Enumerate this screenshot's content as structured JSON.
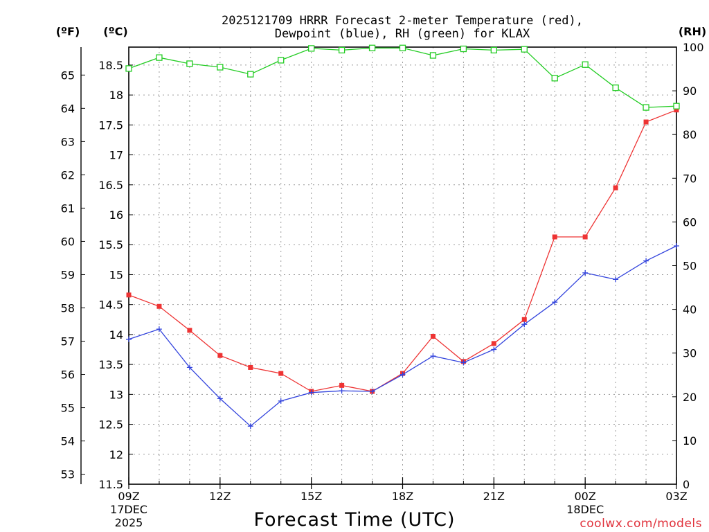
{
  "chart_data": {
    "type": "line",
    "title_line1": "2025121709 HRRR Forecast 2-meter Temperature (red),",
    "title_line2": "Dewpoint (blue), RH (green) for KLAX",
    "xlabel": "Forecast Time (UTC)",
    "credit": "coolwx.com/models",
    "units": {
      "fahrenheit": "(ºF)",
      "celsius": "(ºC)",
      "rh": "(RH)"
    },
    "x_range_hours": [
      0,
      18
    ],
    "celsius_range": [
      11.5,
      18.8
    ],
    "rh_range": [
      0,
      100
    ],
    "x_ticks": [
      {
        "hour": 0,
        "label": "09Z",
        "sub1": "17DEC",
        "sub2": "2025"
      },
      {
        "hour": 3,
        "label": "12Z",
        "sub1": "",
        "sub2": ""
      },
      {
        "hour": 6,
        "label": "15Z",
        "sub1": "",
        "sub2": ""
      },
      {
        "hour": 9,
        "label": "18Z",
        "sub1": "",
        "sub2": ""
      },
      {
        "hour": 12,
        "label": "21Z",
        "sub1": "",
        "sub2": ""
      },
      {
        "hour": 15,
        "label": "00Z",
        "sub1": "18DEC",
        "sub2": ""
      },
      {
        "hour": 18,
        "label": "03Z",
        "sub1": "",
        "sub2": ""
      }
    ],
    "celsius_ticks": [
      {
        "value": 11.5,
        "label": "11.5"
      },
      {
        "value": 12,
        "label": "12"
      },
      {
        "value": 12.5,
        "label": "12.5"
      },
      {
        "value": 13,
        "label": "13"
      },
      {
        "value": 13.5,
        "label": "13.5"
      },
      {
        "value": 14,
        "label": "14"
      },
      {
        "value": 14.5,
        "label": "14.5"
      },
      {
        "value": 15,
        "label": "15"
      },
      {
        "value": 15.5,
        "label": "15.5"
      },
      {
        "value": 16,
        "label": "16"
      },
      {
        "value": 16.5,
        "label": "16.5"
      },
      {
        "value": 17,
        "label": "17"
      },
      {
        "value": 17.5,
        "label": "17.5"
      },
      {
        "value": 18,
        "label": "18"
      },
      {
        "value": 18.5,
        "label": "18.5"
      }
    ],
    "fahrenheit_ticks": [
      {
        "value": 53,
        "label": "53"
      },
      {
        "value": 54,
        "label": "54"
      },
      {
        "value": 55,
        "label": "55"
      },
      {
        "value": 56,
        "label": "56"
      },
      {
        "value": 57,
        "label": "57"
      },
      {
        "value": 58,
        "label": "58"
      },
      {
        "value": 59,
        "label": "59"
      },
      {
        "value": 60,
        "label": "60"
      },
      {
        "value": 61,
        "label": "61"
      },
      {
        "value": 62,
        "label": "62"
      },
      {
        "value": 63,
        "label": "63"
      },
      {
        "value": 64,
        "label": "64"
      },
      {
        "value": 65,
        "label": "65"
      }
    ],
    "rh_ticks": [
      {
        "value": 0,
        "label": "0"
      },
      {
        "value": 10,
        "label": "10"
      },
      {
        "value": 20,
        "label": "20"
      },
      {
        "value": 30,
        "label": "30"
      },
      {
        "value": 40,
        "label": "40"
      },
      {
        "value": 50,
        "label": "50"
      },
      {
        "value": 60,
        "label": "60"
      },
      {
        "value": 70,
        "label": "70"
      },
      {
        "value": 80,
        "label": "80"
      },
      {
        "value": 90,
        "label": "90"
      },
      {
        "value": 100,
        "label": "100"
      }
    ],
    "hours": [
      0,
      1,
      2,
      3,
      4,
      5,
      6,
      7,
      8,
      9,
      10,
      11,
      12,
      13,
      14,
      15,
      16,
      17,
      18
    ],
    "series": [
      {
        "name": "Temperature",
        "axis": "celsius",
        "color": "#ee3333",
        "marker": "filled-square",
        "values": [
          14.66,
          14.47,
          14.07,
          13.65,
          13.45,
          13.35,
          13.05,
          13.15,
          13.05,
          13.35,
          13.97,
          13.55,
          13.85,
          14.25,
          15.63,
          15.63,
          16.45,
          17.55,
          17.75
        ]
      },
      {
        "name": "Dewpoint",
        "axis": "celsius",
        "color": "#3344dd",
        "marker": "plus",
        "values": [
          13.92,
          14.09,
          13.45,
          12.93,
          12.47,
          12.89,
          13.03,
          13.06,
          13.05,
          13.33,
          13.64,
          13.53,
          13.75,
          14.17,
          14.54,
          15.03,
          14.92,
          15.23,
          15.48
        ]
      },
      {
        "name": "RH",
        "axis": "rh",
        "color": "#22cc22",
        "marker": "open-square",
        "values": [
          95.1,
          97.6,
          96.2,
          95.4,
          93.8,
          97.0,
          99.7,
          99.3,
          99.8,
          99.8,
          98.1,
          99.6,
          99.3,
          99.5,
          92.9,
          96.0,
          90.7,
          86.2,
          86.5
        ]
      }
    ]
  }
}
